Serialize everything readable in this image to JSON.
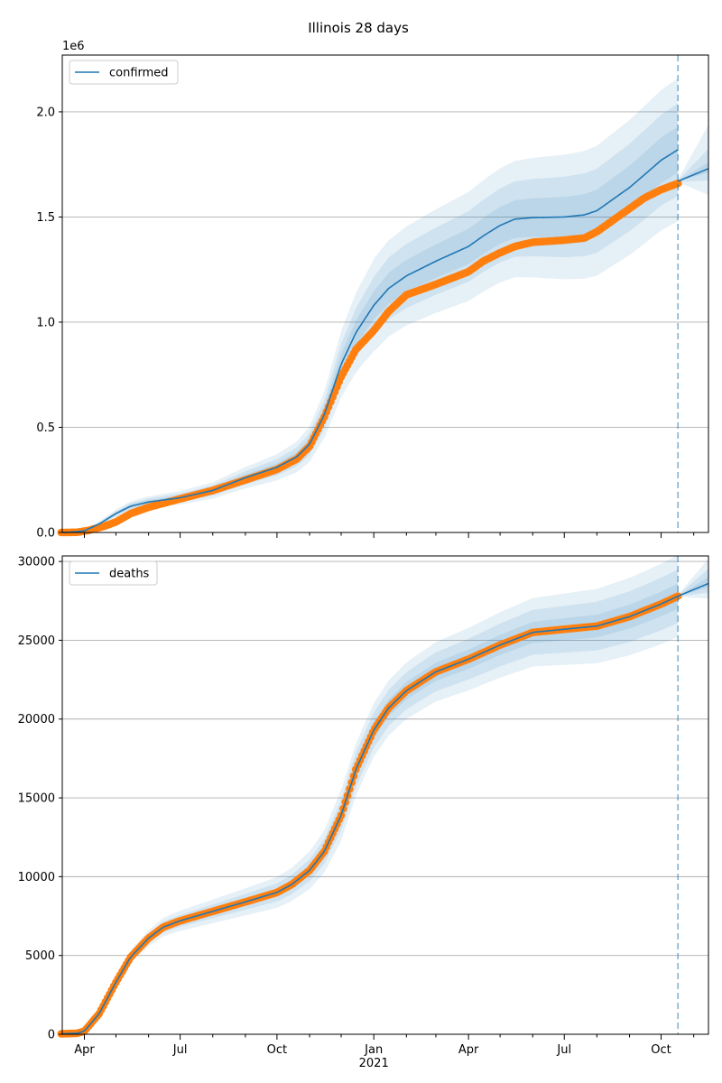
{
  "suptitle": "Illinois 28 days",
  "x_tick_labels": [
    "Apr",
    "Jul",
    "Oct",
    "Jan",
    "Apr",
    "Jul",
    "Oct"
  ],
  "x_year_label": "2021",
  "colors": {
    "model": "#1f77b4",
    "observed": "#ff7f0e",
    "grid": "#b0b0b0",
    "band": "#1f77b4"
  },
  "chart_data": [
    {
      "type": "line",
      "name": "confirmed",
      "legend": "confirmed",
      "legend_loc": "upper left",
      "offset_label": "1e6",
      "grid": "horizontal",
      "xlim": [
        "2020-03-11",
        "2021-11-15"
      ],
      "ylim": [
        0,
        2.27
      ],
      "y_ticks": [
        0.0,
        0.5,
        1.0,
        1.5,
        2.0
      ],
      "y_tick_labels": [
        "0.0",
        "0.5",
        "1.0",
        "1.5",
        "2.0"
      ],
      "forecast_date": "2021-10-17",
      "model": {
        "x": [
          "2020-03-10",
          "2020-03-20",
          "2020-04-01",
          "2020-04-15",
          "2020-05-01",
          "2020-05-15",
          "2020-06-01",
          "2020-07-01",
          "2020-08-01",
          "2020-09-01",
          "2020-10-01",
          "2020-10-20",
          "2020-11-01",
          "2020-11-15",
          "2020-12-01",
          "2020-12-15",
          "2021-01-01",
          "2021-01-15",
          "2021-02-01",
          "2021-03-01",
          "2021-04-01",
          "2021-04-15",
          "2021-05-01",
          "2021-05-15",
          "2021-06-01",
          "2021-07-01",
          "2021-07-20",
          "2021-08-01",
          "2021-08-15",
          "2021-09-01",
          "2021-09-15",
          "2021-10-01",
          "2021-10-17"
        ],
        "y": [
          0.0,
          0.002,
          0.008,
          0.04,
          0.09,
          0.125,
          0.145,
          0.165,
          0.2,
          0.26,
          0.31,
          0.36,
          0.42,
          0.56,
          0.8,
          0.95,
          1.08,
          1.16,
          1.22,
          1.29,
          1.36,
          1.41,
          1.46,
          1.49,
          1.497,
          1.5,
          1.51,
          1.53,
          1.58,
          1.64,
          1.7,
          1.77,
          1.82
        ]
      },
      "band_widths": [
        0.04,
        0.08,
        0.13
      ],
      "band_max": [
        0.11,
        0.22,
        0.34
      ],
      "observed": {
        "x": [
          "2020-03-10",
          "2020-03-25",
          "2020-04-05",
          "2020-04-20",
          "2020-05-01",
          "2020-05-15",
          "2020-06-01",
          "2020-07-01",
          "2020-08-01",
          "2020-09-01",
          "2020-10-01",
          "2020-10-20",
          "2020-11-01",
          "2020-11-15",
          "2020-12-01",
          "2020-12-15",
          "2021-01-01",
          "2021-01-15",
          "2021-02-01",
          "2021-03-01",
          "2021-04-01",
          "2021-04-15",
          "2021-05-01",
          "2021-05-15",
          "2021-06-01",
          "2021-07-01",
          "2021-07-20",
          "2021-08-01",
          "2021-08-15",
          "2021-09-01",
          "2021-09-15",
          "2021-10-01",
          "2021-10-17"
        ],
        "y": [
          0.0,
          0.001,
          0.01,
          0.03,
          0.05,
          0.09,
          0.12,
          0.16,
          0.2,
          0.25,
          0.3,
          0.35,
          0.41,
          0.55,
          0.74,
          0.87,
          0.96,
          1.05,
          1.13,
          1.18,
          1.24,
          1.29,
          1.33,
          1.36,
          1.38,
          1.39,
          1.4,
          1.43,
          1.48,
          1.54,
          1.59,
          1.63,
          1.66
        ]
      },
      "forecast": {
        "x": [
          "2021-10-17",
          "2021-11-15"
        ],
        "y": [
          1.67,
          1.73
        ],
        "band_widths": [
          0.01,
          0.04,
          0.08
        ],
        "band_max": [
          0.03,
          0.09,
          0.2
        ]
      }
    },
    {
      "type": "line",
      "name": "deaths",
      "legend": "deaths",
      "legend_loc": "upper left",
      "offset_label": "",
      "grid": "horizontal",
      "xlim": [
        "2020-03-11",
        "2021-11-15"
      ],
      "ylim": [
        0,
        30350
      ],
      "y_ticks": [
        0,
        5000,
        10000,
        15000,
        20000,
        25000,
        30000
      ],
      "y_tick_labels": [
        "0",
        "5000",
        "10000",
        "15000",
        "20000",
        "25000",
        "30000"
      ],
      "forecast_date": "2021-10-17",
      "model": {
        "x": [
          "2020-03-10",
          "2020-03-25",
          "2020-04-01",
          "2020-04-15",
          "2020-05-01",
          "2020-05-15",
          "2020-06-01",
          "2020-06-15",
          "2020-07-01",
          "2020-08-01",
          "2020-09-01",
          "2020-10-01",
          "2020-10-15",
          "2020-11-01",
          "2020-11-15",
          "2020-12-01",
          "2020-12-15",
          "2021-01-01",
          "2021-01-15",
          "2021-02-01",
          "2021-03-01",
          "2021-04-01",
          "2021-05-01",
          "2021-06-01",
          "2021-07-01",
          "2021-08-01",
          "2021-09-01",
          "2021-10-01",
          "2021-10-17"
        ],
        "y": [
          30,
          60,
          200,
          1300,
          3300,
          4900,
          6100,
          6800,
          7200,
          7800,
          8400,
          9000,
          9500,
          10400,
          11600,
          13900,
          16800,
          19300,
          20700,
          21800,
          23000,
          23800,
          24700,
          25500,
          25700,
          25900,
          26500,
          27300,
          27800
        ]
      },
      "band_widths": [
        300,
        700,
        1200
      ],
      "band_max": [
        800,
        1700,
        2600
      ],
      "observed": {
        "x": [
          "2020-03-10",
          "2020-03-25",
          "2020-04-01",
          "2020-04-15",
          "2020-05-01",
          "2020-05-15",
          "2020-06-01",
          "2020-06-15",
          "2020-07-01",
          "2020-08-01",
          "2020-09-01",
          "2020-10-01",
          "2020-10-15",
          "2020-11-01",
          "2020-11-15",
          "2020-12-01",
          "2020-12-15",
          "2021-01-01",
          "2021-01-15",
          "2021-02-01",
          "2021-03-01",
          "2021-04-01",
          "2021-05-01",
          "2021-06-01",
          "2021-07-01",
          "2021-08-01",
          "2021-09-01",
          "2021-10-01",
          "2021-10-17"
        ],
        "y": [
          30,
          60,
          200,
          1300,
          3300,
          4900,
          6100,
          6800,
          7200,
          7800,
          8400,
          9000,
          9500,
          10400,
          11600,
          13900,
          16800,
          19300,
          20700,
          21800,
          23000,
          23800,
          24700,
          25500,
          25700,
          25900,
          26500,
          27300,
          27800
        ]
      },
      "forecast": {
        "x": [
          "2021-10-17",
          "2021-11-15"
        ],
        "y": [
          27800,
          28600
        ],
        "band_widths": [
          150,
          450,
          800
        ],
        "band_max": [
          400,
          900,
          1500
        ]
      }
    }
  ]
}
